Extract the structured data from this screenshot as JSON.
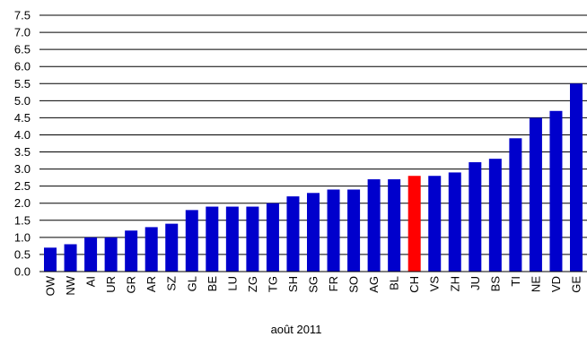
{
  "chart_data": {
    "type": "bar",
    "title": "",
    "xlabel": "août 2011",
    "ylabel": "",
    "ylim": [
      0,
      7.5
    ],
    "yticks": [
      "0.0",
      "0.5",
      "1.0",
      "1.5",
      "2.0",
      "2.5",
      "3.0",
      "3.5",
      "4.0",
      "4.5",
      "5.0",
      "5.5",
      "6.0",
      "6.5",
      "7.0",
      "7.5"
    ],
    "grid": true,
    "legend": "none",
    "categories": [
      "OW",
      "NW",
      "AI",
      "UR",
      "GR",
      "AR",
      "SZ",
      "GL",
      "BE",
      "LU",
      "ZG",
      "TG",
      "SH",
      "SG",
      "FR",
      "SO",
      "AG",
      "BL",
      "CH",
      "VS",
      "ZH",
      "JU",
      "BS",
      "TI",
      "NE",
      "VD",
      "GE"
    ],
    "values": [
      0.7,
      0.8,
      1.0,
      1.0,
      1.2,
      1.3,
      1.4,
      1.8,
      1.9,
      1.9,
      1.9,
      2.0,
      2.2,
      2.3,
      2.4,
      2.4,
      2.7,
      2.7,
      2.8,
      2.8,
      2.9,
      3.2,
      3.3,
      3.9,
      4.5,
      4.7,
      5.5
    ],
    "highlight": "CH",
    "colors": {
      "bar": "#0000cc",
      "highlight": "#ff0000",
      "grid": "#000000"
    }
  }
}
